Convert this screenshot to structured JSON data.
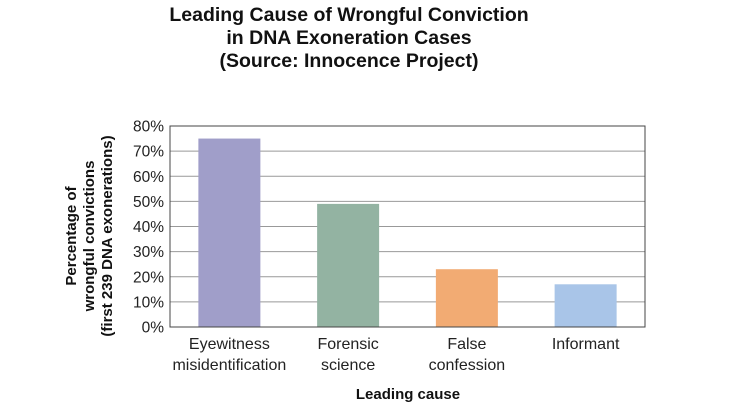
{
  "chart_data": {
    "type": "bar",
    "title_lines": [
      "Leading Cause of Wrongful Conviction",
      "in DNA Exoneration Cases",
      "(Source: Innocence Project)"
    ],
    "categories": [
      [
        "Eyewitness",
        "misidentification"
      ],
      [
        "Forensic",
        "science"
      ],
      [
        "False",
        "confession"
      ],
      [
        "Informant"
      ]
    ],
    "values": [
      75,
      49,
      23,
      17
    ],
    "colors": [
      "#a09ec9",
      "#93b3a2",
      "#f2ab73",
      "#a9c5e8"
    ],
    "ylabel_lines": [
      "Percentage of",
      "wrongful convictions",
      "(first 239 DNA exonerations)"
    ],
    "xlabel": "Leading cause",
    "ylim": [
      0,
      80
    ],
    "yticks": [
      "0%",
      "10%",
      "20%",
      "30%",
      "40%",
      "50%",
      "60%",
      "70%",
      "80%"
    ],
    "grid": true
  }
}
